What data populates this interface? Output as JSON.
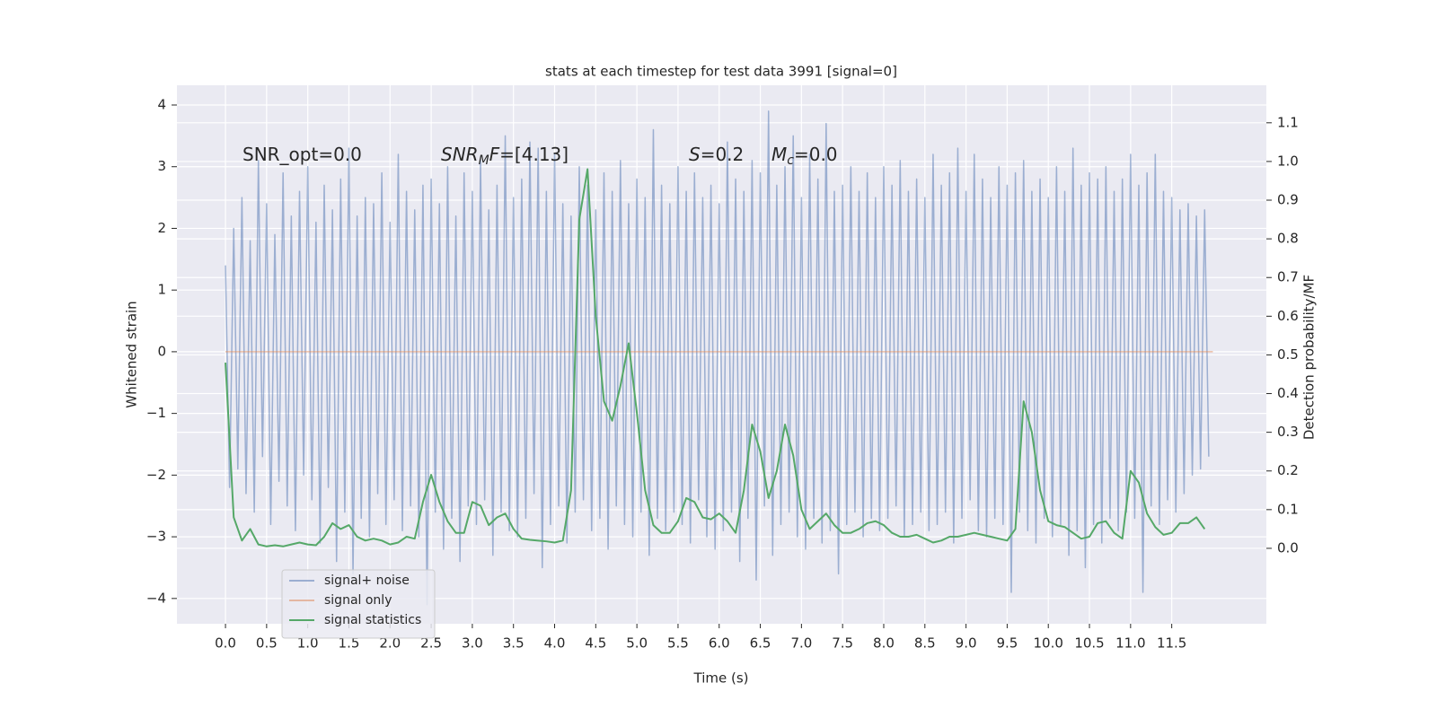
{
  "chart_data": {
    "type": "line",
    "title": "stats at each timestep for test data 3991 [signal=0]",
    "xlabel": "Time (s)",
    "ylabel": "Whitened strain",
    "y2label": "Detection probability/MF",
    "xlim": [
      -0.59,
      12.65
    ],
    "ylim": [
      -4.41,
      4.32
    ],
    "y2lim": [
      -0.195,
      1.197
    ],
    "xticks": [
      {
        "value": 0,
        "label": "0.0"
      },
      0.5,
      {
        "value": 1,
        "label": "1.0"
      },
      1.5,
      {
        "value": 2,
        "label": "2.0"
      },
      2.5,
      {
        "value": 3,
        "label": "3.0"
      },
      3.5,
      {
        "value": 4,
        "label": "4.0"
      },
      4.5,
      {
        "value": 5,
        "label": "5.0"
      },
      5.5,
      {
        "value": 6,
        "label": "6.0"
      },
      6.5,
      {
        "value": 7,
        "label": "7.0"
      },
      7.5,
      {
        "value": 8,
        "label": "8.0"
      },
      8.5,
      {
        "value": 9,
        "label": "9.0"
      },
      9.5,
      {
        "value": 10,
        "label": "10.0"
      },
      10.5,
      {
        "value": 11,
        "label": "11.0"
      },
      11.5
    ],
    "yticks": [
      -4,
      -3,
      -2,
      -1,
      0,
      1,
      2,
      3,
      4
    ],
    "y2ticks": [
      {
        "value": 0,
        "label": "0.0"
      },
      0.1,
      0.2,
      0.3,
      0.4,
      0.5,
      0.6,
      0.7,
      0.8,
      0.9,
      {
        "value": 1,
        "label": "1.0"
      },
      1.1
    ],
    "grid": true,
    "legend": "lower left",
    "annotations": [
      {
        "parts": [
          {
            "text": "SNR_opt=0.0"
          }
        ]
      },
      {
        "parts": [
          {
            "text": "SNR",
            "italic": true
          },
          {
            "text": "M",
            "italic": true,
            "subscript": true
          },
          {
            "text": "F",
            "italic": true
          },
          {
            "text": "=[4.13]"
          }
        ]
      },
      {
        "parts": [
          {
            "text": "S",
            "italic": true
          },
          {
            "text": "=0.2"
          }
        ]
      },
      {
        "parts": [
          {
            "text": "M",
            "italic": true
          },
          {
            "text": "c",
            "italic": true,
            "subscript": true
          },
          {
            "text": "=0.0"
          }
        ]
      }
    ],
    "series": [
      {
        "name": "signal+ noise",
        "color": "#4c72b0",
        "opacity": 0.5,
        "x": [
          0,
          0.05,
          0.1,
          0.15,
          0.2,
          0.25,
          0.3,
          0.35,
          0.4,
          0.45,
          0.5,
          0.55,
          0.6,
          0.65,
          0.7,
          0.75,
          0.8,
          0.85,
          0.9,
          0.95,
          1,
          1.05,
          1.1,
          1.15,
          1.2,
          1.25,
          1.3,
          1.35,
          1.4,
          1.45,
          1.5,
          1.55,
          1.6,
          1.65,
          1.7,
          1.75,
          1.8,
          1.85,
          1.9,
          1.95,
          2,
          2.05,
          2.1,
          2.15,
          2.2,
          2.25,
          2.3,
          2.35,
          2.4,
          2.45,
          2.5,
          2.55,
          2.6,
          2.65,
          2.7,
          2.75,
          2.8,
          2.85,
          2.9,
          2.95,
          3,
          3.05,
          3.1,
          3.15,
          3.2,
          3.25,
          3.3,
          3.35,
          3.4,
          3.45,
          3.5,
          3.55,
          3.6,
          3.65,
          3.7,
          3.75,
          3.8,
          3.85,
          3.9,
          3.95,
          4,
          4.05,
          4.1,
          4.15,
          4.2,
          4.25,
          4.3,
          4.35,
          4.4,
          4.45,
          4.5,
          4.55,
          4.6,
          4.65,
          4.7,
          4.75,
          4.8,
          4.85,
          4.9,
          4.95,
          5,
          5.05,
          5.1,
          5.15,
          5.2,
          5.25,
          5.3,
          5.35,
          5.4,
          5.45,
          5.5,
          5.55,
          5.6,
          5.65,
          5.7,
          5.75,
          5.8,
          5.85,
          5.9,
          5.95,
          6,
          6.05,
          6.1,
          6.15,
          6.2,
          6.25,
          6.3,
          6.35,
          6.4,
          6.45,
          6.5,
          6.55,
          6.6,
          6.65,
          6.7,
          6.75,
          6.8,
          6.85,
          6.9,
          6.95,
          7,
          7.05,
          7.1,
          7.15,
          7.2,
          7.25,
          7.3,
          7.35,
          7.4,
          7.45,
          7.5,
          7.55,
          7.6,
          7.65,
          7.7,
          7.75,
          7.8,
          7.85,
          7.9,
          7.95,
          8,
          8.05,
          8.1,
          8.15,
          8.2,
          8.25,
          8.3,
          8.35,
          8.4,
          8.45,
          8.5,
          8.55,
          8.6,
          8.65,
          8.7,
          8.75,
          8.8,
          8.85,
          8.9,
          8.95,
          9,
          9.05,
          9.1,
          9.15,
          9.2,
          9.25,
          9.3,
          9.35,
          9.4,
          9.45,
          9.5,
          9.55,
          9.6,
          9.65,
          9.7,
          9.75,
          9.8,
          9.85,
          9.9,
          9.95,
          10,
          10.05,
          10.1,
          10.15,
          10.2,
          10.25,
          10.3,
          10.35,
          10.4,
          10.45,
          10.5,
          10.55,
          10.6,
          10.65,
          10.7,
          10.75,
          10.8,
          10.85,
          10.9,
          10.95,
          11,
          11.05,
          11.1,
          11.15,
          11.2,
          11.25,
          11.3,
          11.35,
          11.4,
          11.45,
          11.5,
          11.55,
          11.6,
          11.65,
          11.7,
          11.75,
          11.8,
          11.85,
          11.9,
          11.95
        ],
        "values": [
          1.4,
          -2.2,
          2.0,
          -1.9,
          2.5,
          -2.3,
          1.8,
          -2.6,
          3.1,
          -1.7,
          2.4,
          -2.8,
          1.9,
          -2.1,
          2.9,
          -2.5,
          2.2,
          -2.9,
          2.6,
          -2.0,
          3.0,
          -2.4,
          2.1,
          -3.1,
          2.7,
          -2.2,
          2.3,
          -3.4,
          2.8,
          -2.6,
          3.3,
          -3.6,
          2.2,
          -2.7,
          2.5,
          -3.0,
          2.4,
          -2.3,
          2.9,
          -2.8,
          2.1,
          -2.4,
          3.2,
          -2.9,
          2.6,
          -2.5,
          2.3,
          -3.0,
          2.7,
          -4.1,
          2.8,
          -2.6,
          2.4,
          -3.2,
          3.0,
          -2.7,
          2.2,
          -3.4,
          2.9,
          -2.5,
          2.6,
          -2.8,
          3.1,
          -2.4,
          2.3,
          -3.3,
          2.7,
          -2.6,
          3.5,
          -2.9,
          2.5,
          -3.0,
          2.8,
          -2.7,
          3.4,
          -2.3,
          3.3,
          -3.5,
          2.6,
          -2.8,
          3.2,
          -2.5,
          2.4,
          -3.1,
          2.2,
          -2.6,
          3.0,
          -2.4,
          2.7,
          -2.9,
          2.3,
          -2.7,
          2.9,
          -3.2,
          2.6,
          -2.5,
          3.1,
          -2.8,
          2.4,
          -3.0,
          2.8,
          -2.6,
          2.5,
          -3.3,
          3.6,
          -2.7,
          2.7,
          -2.9,
          2.4,
          -2.6,
          3.0,
          -2.8,
          2.6,
          -3.1,
          2.9,
          -2.4,
          2.5,
          -3.0,
          2.7,
          -3.2,
          2.4,
          -2.9,
          3.4,
          -2.6,
          2.8,
          -3.4,
          2.6,
          -2.7,
          3.1,
          -3.7,
          2.9,
          -2.5,
          3.9,
          -3.3,
          2.7,
          -2.8,
          3.0,
          -2.6,
          3.5,
          -3.0,
          2.5,
          -3.2,
          3.2,
          -2.7,
          2.8,
          -3.1,
          3.7,
          -2.9,
          2.6,
          -3.6,
          2.7,
          -2.8,
          3.0,
          -2.6,
          2.6,
          -3.0,
          2.9,
          -2.7,
          2.5,
          -2.9,
          3.0,
          -2.7,
          2.7,
          -2.5,
          3.1,
          -3.0,
          2.6,
          -2.8,
          2.8,
          -2.6,
          2.5,
          -2.9,
          3.2,
          -2.8,
          2.7,
          -2.6,
          2.9,
          -3.1,
          3.3,
          -2.7,
          2.6,
          -2.4,
          3.2,
          -2.9,
          2.8,
          -3.0,
          2.5,
          -2.7,
          3.0,
          -2.8,
          2.7,
          -3.9,
          2.9,
          -2.6,
          3.1,
          -2.9,
          2.6,
          -3.1,
          2.8,
          -2.7,
          2.5,
          -3.0,
          3.0,
          -2.8,
          2.6,
          -3.3,
          3.3,
          -2.9,
          2.7,
          -3.5,
          2.9,
          -2.8,
          2.8,
          -3.1,
          3.0,
          -2.7,
          2.6,
          -2.9,
          2.8,
          -2.6,
          3.2,
          -2.7,
          2.7,
          -3.9,
          2.9,
          -2.5,
          3.2,
          -2.8,
          2.6,
          -2.4,
          2.5,
          -2.6,
          2.3,
          -2.3,
          2.4,
          -2.0,
          2.2,
          -1.9,
          2.3,
          -1.7
        ]
      },
      {
        "name": "signal only",
        "color": "#dd8452",
        "opacity": 0.5,
        "x": [
          0,
          12
        ],
        "values": [
          0,
          0
        ]
      },
      {
        "name": "signal statistics",
        "color": "#55a868",
        "opacity": 1,
        "axis": "y2",
        "x": [
          0,
          0.1,
          0.2,
          0.3,
          0.4,
          0.5,
          0.6,
          0.7,
          0.8,
          0.9,
          1,
          1.1,
          1.2,
          1.3,
          1.4,
          1.5,
          1.6,
          1.7,
          1.8,
          1.9,
          2,
          2.1,
          2.2,
          2.3,
          2.4,
          2.5,
          2.6,
          2.7,
          2.8,
          2.9,
          3,
          3.1,
          3.2,
          3.3,
          3.4,
          3.5,
          3.6,
          3.7,
          3.8,
          3.9,
          4,
          4.1,
          4.2,
          4.3,
          4.4,
          4.5,
          4.6,
          4.7,
          4.8,
          4.9,
          5,
          5.1,
          5.2,
          5.3,
          5.4,
          5.5,
          5.6,
          5.7,
          5.8,
          5.9,
          6,
          6.1,
          6.2,
          6.3,
          6.4,
          6.5,
          6.6,
          6.7,
          6.8,
          6.9,
          7,
          7.1,
          7.2,
          7.3,
          7.4,
          7.5,
          7.6,
          7.7,
          7.8,
          7.9,
          8,
          8.1,
          8.2,
          8.3,
          8.4,
          8.5,
          8.6,
          8.7,
          8.8,
          8.9,
          9,
          9.1,
          9.2,
          9.3,
          9.4,
          9.5,
          9.6,
          9.7,
          9.8,
          9.9,
          10,
          10.1,
          10.2,
          10.3,
          10.4,
          10.5,
          10.6,
          10.7,
          10.8,
          10.9,
          11,
          11.1,
          11.2,
          11.3,
          11.4,
          11.5,
          11.6,
          11.7,
          11.8,
          11.9
        ],
        "values": [
          0.48,
          0.08,
          0.02,
          0.05,
          0.01,
          0.005,
          0.008,
          0.005,
          0.01,
          0.015,
          0.01,
          0.008,
          0.03,
          0.065,
          0.05,
          0.06,
          0.03,
          0.02,
          0.025,
          0.02,
          0.01,
          0.015,
          0.03,
          0.025,
          0.12,
          0.19,
          0.12,
          0.07,
          0.04,
          0.04,
          0.12,
          0.11,
          0.06,
          0.08,
          0.09,
          0.05,
          0.025,
          0.022,
          0.02,
          0.018,
          0.015,
          0.02,
          0.15,
          0.85,
          0.98,
          0.6,
          0.38,
          0.33,
          0.42,
          0.53,
          0.35,
          0.15,
          0.06,
          0.04,
          0.04,
          0.07,
          0.13,
          0.12,
          0.08,
          0.075,
          0.09,
          0.07,
          0.04,
          0.15,
          0.32,
          0.25,
          0.13,
          0.2,
          0.32,
          0.24,
          0.1,
          0.05,
          0.07,
          0.09,
          0.06,
          0.04,
          0.04,
          0.05,
          0.065,
          0.07,
          0.06,
          0.04,
          0.03,
          0.03,
          0.035,
          0.025,
          0.015,
          0.02,
          0.03,
          0.03,
          0.035,
          0.04,
          0.035,
          0.03,
          0.025,
          0.02,
          0.05,
          0.38,
          0.3,
          0.15,
          0.07,
          0.06,
          0.055,
          0.04,
          0.025,
          0.03,
          0.065,
          0.07,
          0.04,
          0.025,
          0.2,
          0.17,
          0.09,
          0.055,
          0.035,
          0.04,
          0.065,
          0.065,
          0.08,
          0.05
        ]
      }
    ]
  }
}
